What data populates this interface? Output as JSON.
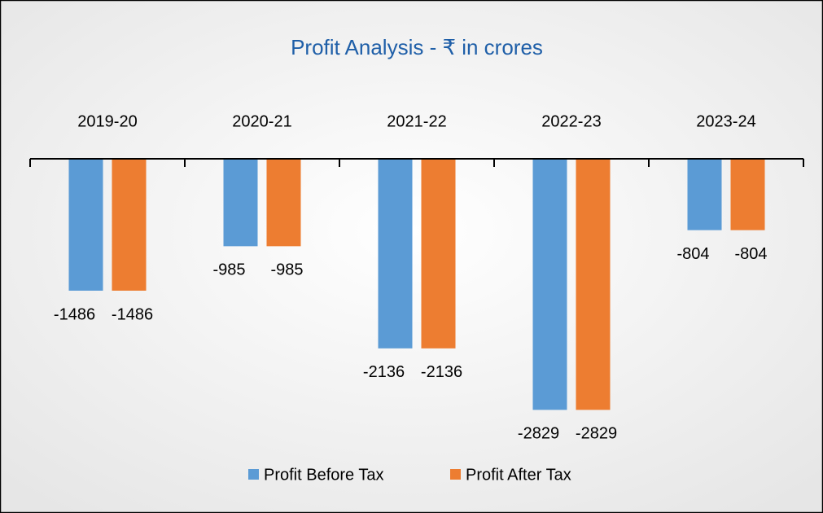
{
  "chart_data": {
    "type": "bar",
    "title": "Profit Analysis - ₹ in crores",
    "categories": [
      "2019-20",
      "2020-21",
      "2021-22",
      "2022-23",
      "2023-24"
    ],
    "series": [
      {
        "name": "Profit Before Tax",
        "color": "#5b9bd5",
        "values": [
          -1486,
          -985,
          -2136,
          -2829,
          -804
        ]
      },
      {
        "name": "Profit After Tax",
        "color": "#ed7d31",
        "values": [
          -1486,
          -985,
          -2136,
          -2829,
          -804
        ]
      }
    ],
    "ylim": [
      -3000,
      0
    ],
    "legend": "bottom"
  }
}
